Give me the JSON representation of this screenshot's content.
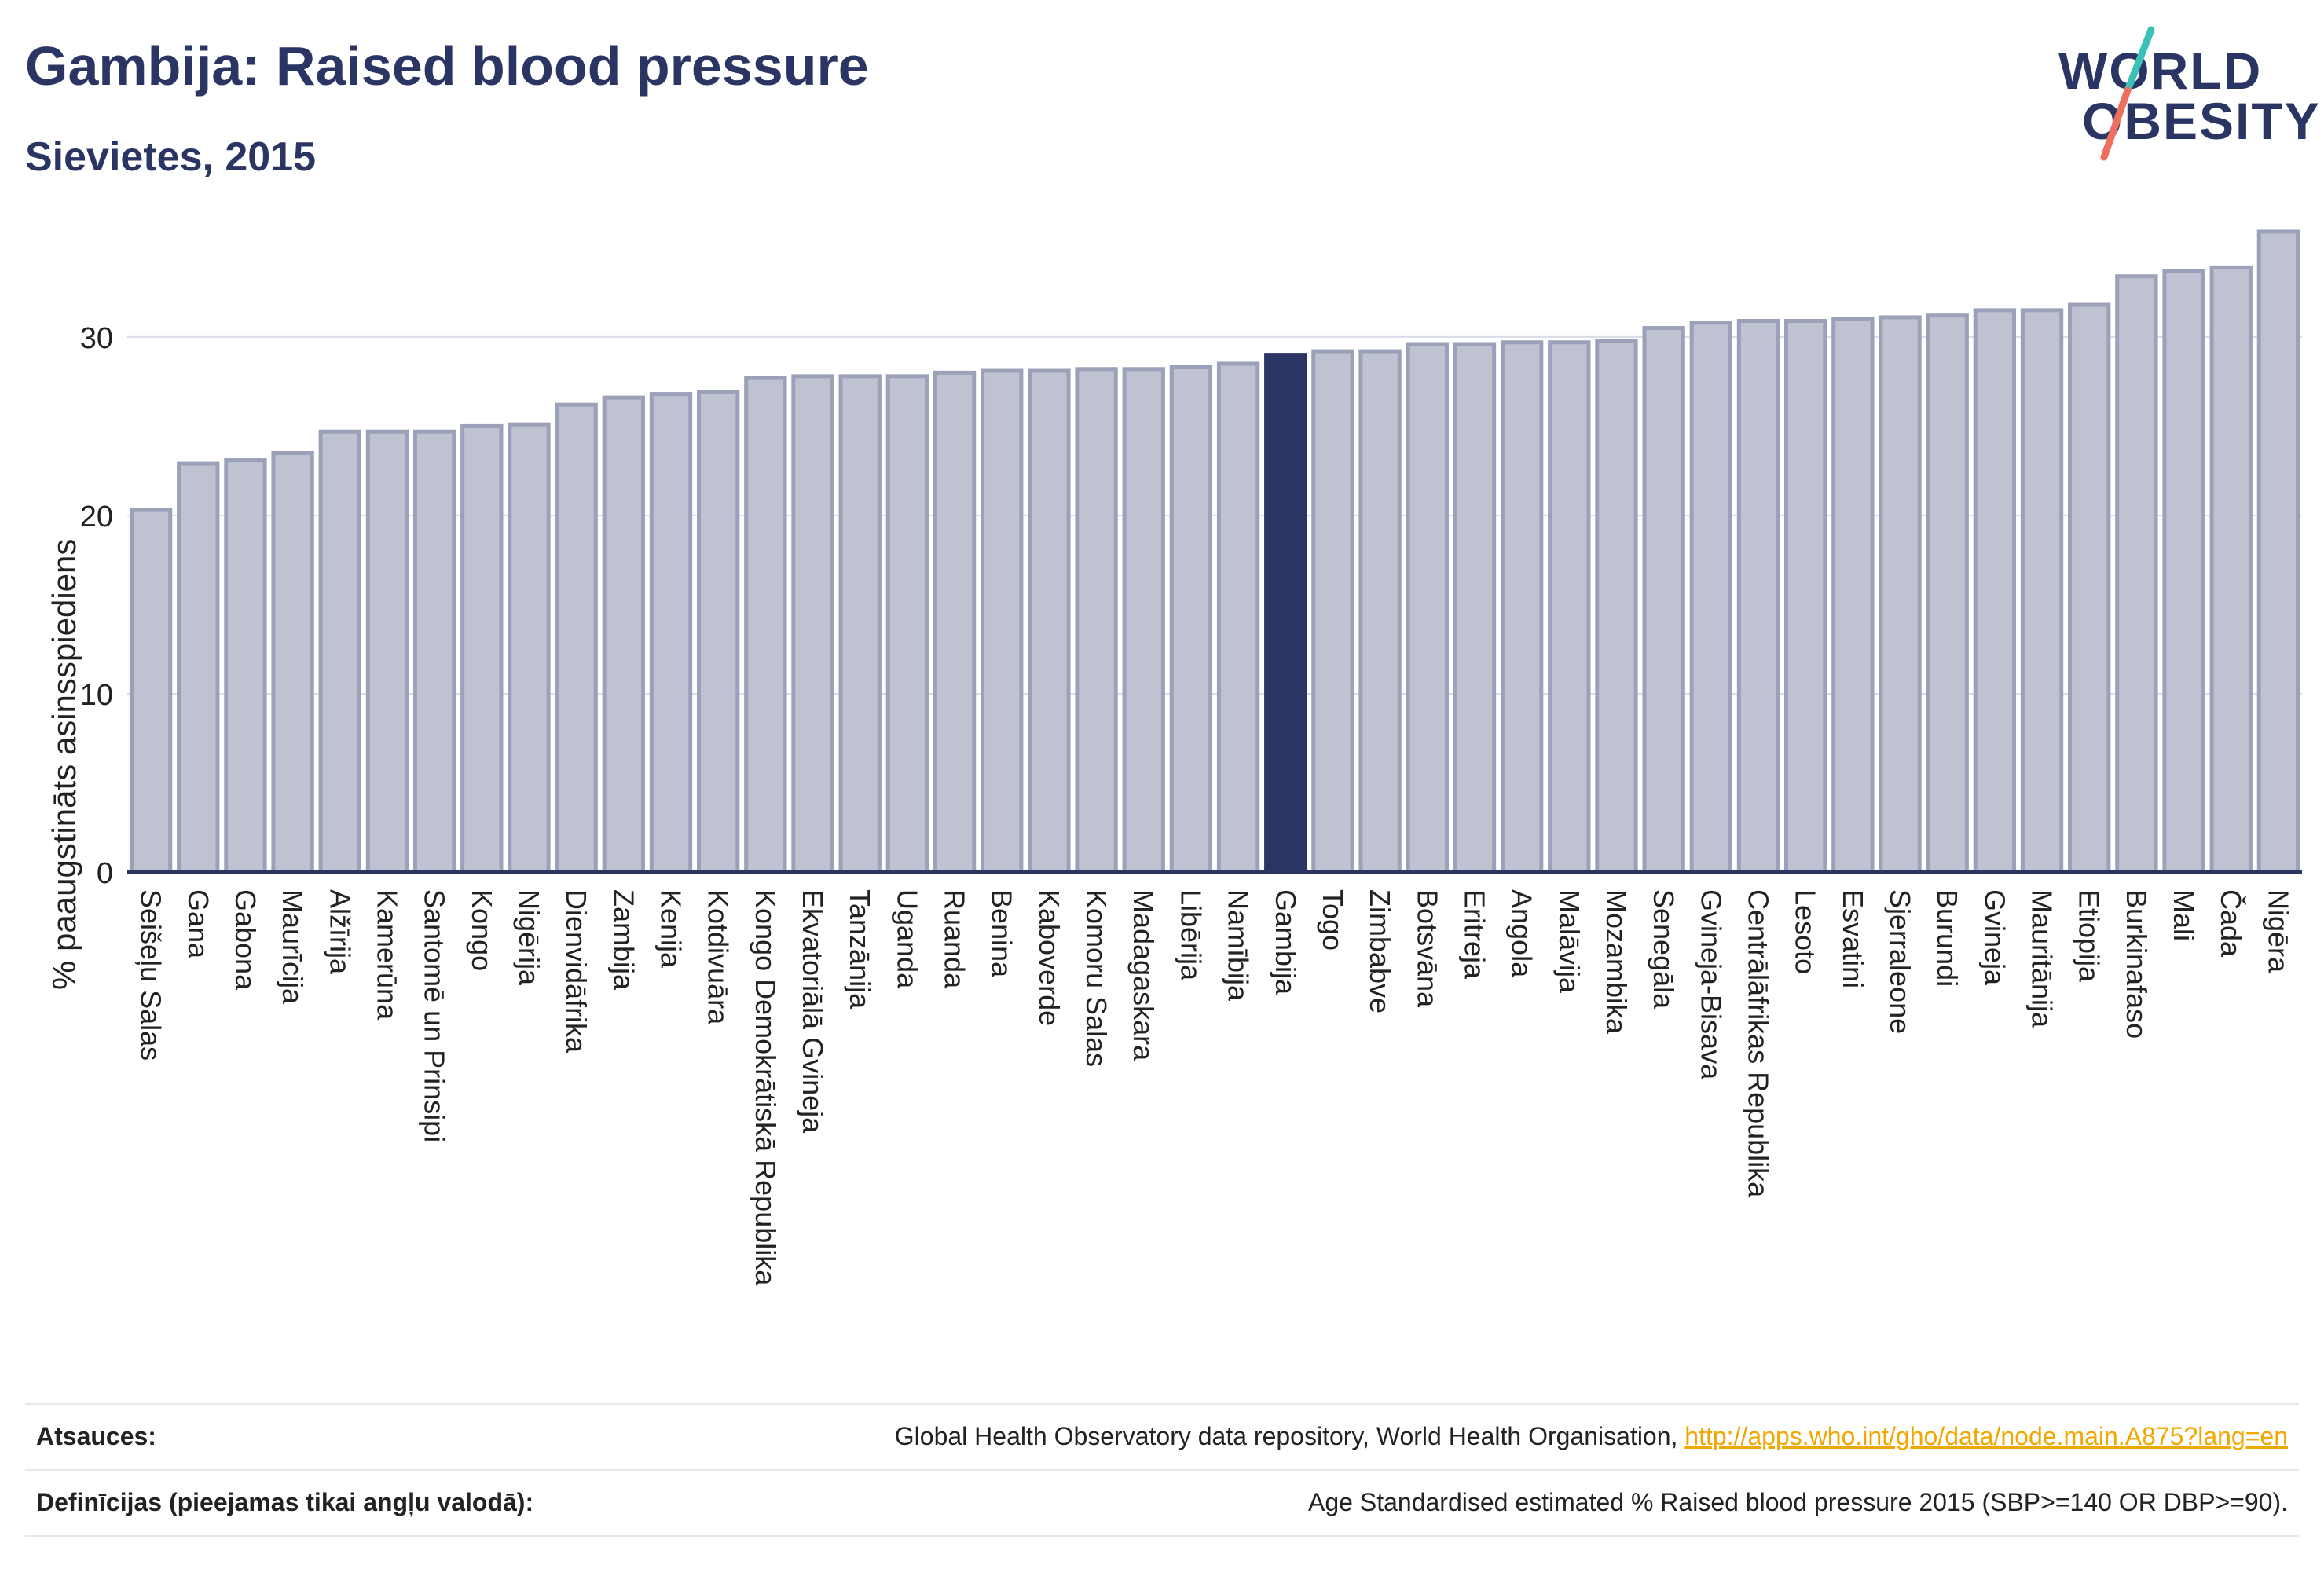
{
  "header": {
    "title": "Gambija: Raised blood pressure",
    "subtitle": "Sievietes, 2015"
  },
  "logo": {
    "line1": "WORLD",
    "line2": "OBESITY"
  },
  "chart_data": {
    "type": "bar",
    "ylabel": "% paaugstināts asinsspiediens",
    "ylim": [
      0,
      37
    ],
    "yticks": [
      0,
      10,
      20,
      30
    ],
    "grid": true,
    "highlight": "Gambija",
    "colors": {
      "bar": "#bfc3d1",
      "bar_edge": "#9aa1b8",
      "highlight": "#2b3563",
      "grid": "#d9dce6"
    },
    "categories": [
      "Seišeļu Salas",
      "Gana",
      "Gabona",
      "Maurīcija",
      "Alžīrija",
      "Kamerūna",
      "Santomē un Prinsipi",
      "Kongo",
      "Nigērija",
      "Dienvidāfrika",
      "Zambija",
      "Kenija",
      "Kotdivuāra",
      "Kongo Demokrātiskā Republika",
      "Ekvatoriālā Gvineja",
      "Tanzānija",
      "Uganda",
      "Ruanda",
      "Benina",
      "Kaboverde",
      "Komoru Salas",
      "Madagaskara",
      "Libērija",
      "Namībija",
      "Gambija",
      "Togo",
      "Zimbabve",
      "Botsvāna",
      "Eritreja",
      "Angola",
      "Malāvija",
      "Mozambika",
      "Senegāla",
      "Gvineja-Bisava",
      "Centrālāfrikas Republika",
      "Lesoto",
      "Esvatini",
      "Sjerraleone",
      "Burundi",
      "Gvineja",
      "Mauritānija",
      "Etiopija",
      "Burkinafaso",
      "Mali",
      "Čada",
      "Nigēra"
    ],
    "values": [
      20.3,
      22.9,
      23.1,
      23.5,
      24.7,
      24.7,
      24.7,
      25.0,
      25.1,
      26.2,
      26.6,
      26.8,
      26.9,
      27.7,
      27.8,
      27.8,
      27.8,
      28.0,
      28.1,
      28.1,
      28.2,
      28.2,
      28.3,
      28.5,
      29.0,
      29.2,
      29.2,
      29.6,
      29.6,
      29.7,
      29.7,
      29.8,
      30.5,
      30.8,
      30.9,
      30.9,
      31.0,
      31.1,
      31.2,
      31.5,
      31.5,
      31.8,
      33.4,
      33.7,
      33.9,
      35.9
    ]
  },
  "footer": {
    "sources_label": "Atsauces:",
    "sources_text": "Global Health Observatory data repository, World Health Organisation,",
    "sources_link": "http://apps.who.int/gho/data/node.main.A875?lang=en",
    "definitions_label": "Definīcijas (pieejamas tikai angļu valodā):",
    "definitions_text": "Age Standardised estimated % Raised blood pressure 2015 (SBP>=140 OR DBP>=90)."
  }
}
